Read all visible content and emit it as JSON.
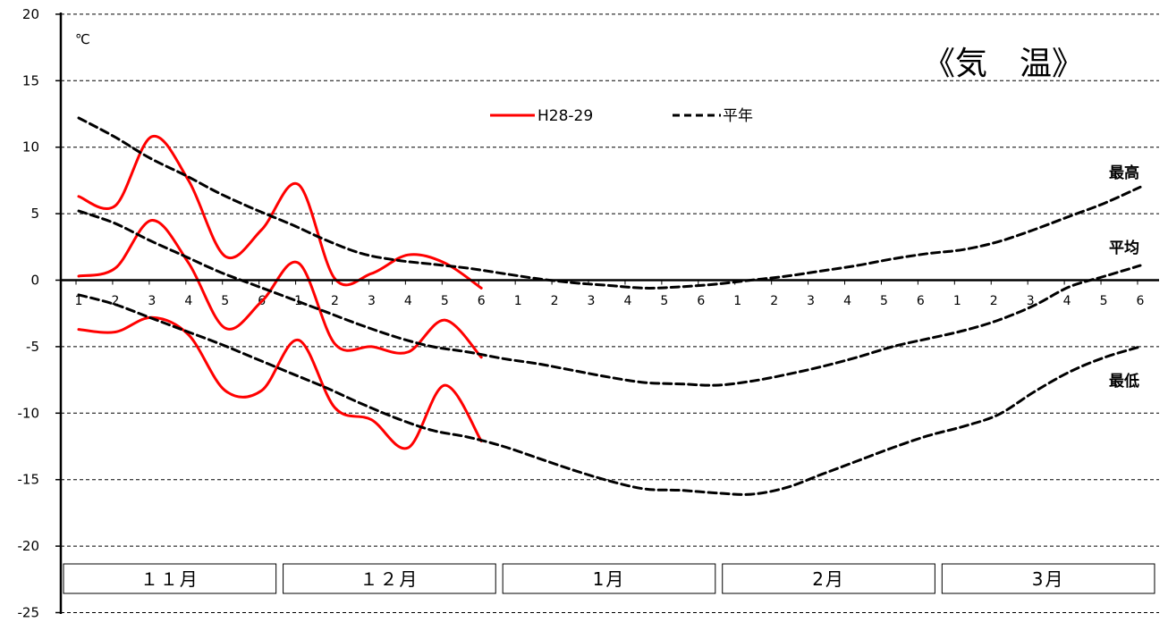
{
  "chart_data": {
    "type": "line",
    "title": "《気　温》",
    "unit_label": "℃",
    "ylim": [
      -25,
      20
    ],
    "y_ticks": [
      "20",
      "15",
      "10",
      "5",
      "0",
      "-5",
      "-10",
      "-15",
      "-20",
      "-25"
    ],
    "grid": true,
    "x_ticks": [
      "1",
      "2",
      "3",
      "4",
      "5",
      "6",
      "1",
      "2",
      "3",
      "4",
      "5",
      "6",
      "1",
      "2",
      "3",
      "4",
      "5",
      "6",
      "1",
      "2",
      "3",
      "4",
      "5",
      "6",
      "1",
      "2",
      "3",
      "4",
      "5",
      "6"
    ],
    "months": [
      "１１月",
      "１２月",
      "1月",
      "2月",
      "3月"
    ],
    "legend": {
      "observed": "H28-29",
      "normal": "平年"
    },
    "curve_labels": {
      "max": "最高",
      "avg": "平均",
      "min": "最低"
    },
    "series": [
      {
        "name": "H28-29",
        "kind": "observed",
        "group": "max",
        "color": "#ff0000",
        "values": [
          6.3,
          5.6,
          10.8,
          7.5,
          1.8,
          3.8,
          7.2,
          0.1,
          0.5,
          1.9,
          1.3,
          -0.6
        ]
      },
      {
        "name": "H28-29",
        "kind": "observed",
        "group": "avg",
        "color": "#ff0000",
        "values": [
          0.3,
          0.9,
          4.5,
          1.3,
          -3.6,
          -1.6,
          1.3,
          -4.8,
          -5.0,
          -5.4,
          -3.0,
          -5.8
        ]
      },
      {
        "name": "H28-29",
        "kind": "observed",
        "group": "min",
        "color": "#ff0000",
        "values": [
          -3.7,
          -3.9,
          -2.8,
          -4.1,
          -8.3,
          -8.3,
          -4.5,
          -9.6,
          -10.5,
          -12.6,
          -7.9,
          -12.1
        ]
      },
      {
        "name": "平年",
        "kind": "normal",
        "group": "max",
        "color": "#000000",
        "values": [
          12.2,
          10.8,
          9.2,
          7.9,
          6.5,
          5.3,
          4.2,
          3.0,
          2.0,
          1.5,
          1.2,
          0.9,
          0.5,
          0.1,
          -0.2,
          -0.4,
          -0.6,
          -0.5,
          -0.3,
          0.0,
          0.3,
          0.7,
          1.1,
          1.6,
          2.0,
          2.3,
          2.9,
          3.8,
          4.8,
          5.8,
          7.0
        ]
      },
      {
        "name": "平年",
        "kind": "normal",
        "group": "avg",
        "color": "#000000",
        "values": [
          5.2,
          4.3,
          3.0,
          1.8,
          0.6,
          -0.4,
          -1.4,
          -2.4,
          -3.4,
          -4.3,
          -5.0,
          -5.4,
          -5.9,
          -6.3,
          -6.8,
          -7.3,
          -7.7,
          -7.8,
          -7.9,
          -7.6,
          -7.1,
          -6.5,
          -5.8,
          -5.0,
          -4.4,
          -3.8,
          -3.0,
          -1.9,
          -0.5,
          0.3,
          1.1
        ]
      },
      {
        "name": "平年",
        "kind": "normal",
        "group": "min",
        "color": "#000000",
        "values": [
          -1.1,
          -1.8,
          -2.8,
          -3.8,
          -4.8,
          -5.9,
          -7.0,
          -8.1,
          -9.3,
          -10.4,
          -11.3,
          -11.8,
          -12.5,
          -13.4,
          -14.3,
          -15.1,
          -15.7,
          -15.8,
          -16.0,
          -16.1,
          -15.6,
          -14.6,
          -13.6,
          -12.6,
          -11.7,
          -11.0,
          -10.1,
          -8.4,
          -6.9,
          -5.8,
          -5.0
        ]
      }
    ]
  }
}
